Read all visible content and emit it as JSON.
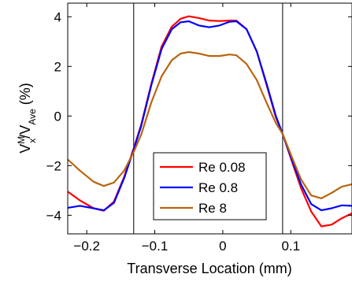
{
  "chart_data": {
    "type": "line",
    "xlabel": "Transverse Location (mm)",
    "ylabel": {
      "base1": "V",
      "sup1": "M",
      "sub1": "x",
      "slash": "/V",
      "sub2": "Ave",
      "unit": " (%)"
    },
    "xlim": [
      -0.228,
      0.19
    ],
    "ylim": [
      -4.75,
      4.55
    ],
    "xticks": [
      -0.2,
      -0.1,
      0,
      0.1
    ],
    "xtick_labels": [
      "−0.2",
      "−0.1",
      "0",
      "0.1"
    ],
    "yticks": [
      -4,
      -2,
      0,
      2,
      4
    ],
    "ytick_labels": [
      "−4",
      "−2",
      "0",
      "2",
      "4"
    ],
    "vlines": [
      -0.131,
      0.088
    ],
    "grid": false,
    "legend_position": "lower-center",
    "series": [
      {
        "name": "Re 0.08",
        "color": "#ff0000",
        "x": [
          -0.228,
          -0.21,
          -0.19,
          -0.175,
          -0.16,
          -0.145,
          -0.131,
          -0.12,
          -0.105,
          -0.09,
          -0.075,
          -0.062,
          -0.05,
          -0.035,
          -0.02,
          -0.005,
          0.01,
          0.02,
          0.035,
          0.05,
          0.065,
          0.078,
          0.088,
          0.1,
          0.115,
          0.13,
          0.145,
          0.16,
          0.175,
          0.19
        ],
        "y": [
          -3.05,
          -3.4,
          -3.72,
          -3.82,
          -3.45,
          -2.45,
          -1.3,
          -0.35,
          1.3,
          2.8,
          3.6,
          3.92,
          4.02,
          3.95,
          3.85,
          3.83,
          3.85,
          3.85,
          3.5,
          2.6,
          1.2,
          -0.05,
          -0.72,
          -1.7,
          -2.9,
          -3.85,
          -4.45,
          -4.38,
          -4.12,
          -3.92
        ]
      },
      {
        "name": "Re 0.8",
        "color": "#0000ff",
        "x": [
          -0.228,
          -0.21,
          -0.19,
          -0.175,
          -0.16,
          -0.145,
          -0.131,
          -0.12,
          -0.105,
          -0.09,
          -0.075,
          -0.062,
          -0.05,
          -0.035,
          -0.02,
          -0.005,
          0.01,
          0.02,
          0.035,
          0.05,
          0.065,
          0.078,
          0.088,
          0.1,
          0.115,
          0.13,
          0.145,
          0.16,
          0.175,
          0.19
        ],
        "y": [
          -3.7,
          -3.62,
          -3.72,
          -3.8,
          -3.5,
          -2.5,
          -1.35,
          -0.4,
          1.25,
          2.7,
          3.5,
          3.78,
          3.82,
          3.65,
          3.58,
          3.65,
          3.8,
          3.82,
          3.5,
          2.6,
          1.25,
          0.0,
          -0.72,
          -1.65,
          -2.75,
          -3.55,
          -3.8,
          -3.72,
          -3.6,
          -3.62
        ]
      },
      {
        "name": "Re 8",
        "color": "#b8650f",
        "x": [
          -0.228,
          -0.21,
          -0.19,
          -0.175,
          -0.16,
          -0.145,
          -0.131,
          -0.12,
          -0.105,
          -0.09,
          -0.075,
          -0.062,
          -0.05,
          -0.035,
          -0.02,
          -0.005,
          0.01,
          0.02,
          0.035,
          0.05,
          0.065,
          0.078,
          0.088,
          0.1,
          0.115,
          0.13,
          0.145,
          0.16,
          0.175,
          0.19
        ],
        "y": [
          -1.75,
          -2.2,
          -2.65,
          -2.82,
          -2.68,
          -2.2,
          -1.45,
          -0.75,
          0.55,
          1.6,
          2.25,
          2.52,
          2.58,
          2.52,
          2.42,
          2.42,
          2.48,
          2.45,
          2.1,
          1.45,
          0.5,
          -0.28,
          -0.72,
          -1.55,
          -2.55,
          -3.2,
          -3.32,
          -3.1,
          -2.85,
          -2.75
        ]
      }
    ]
  }
}
